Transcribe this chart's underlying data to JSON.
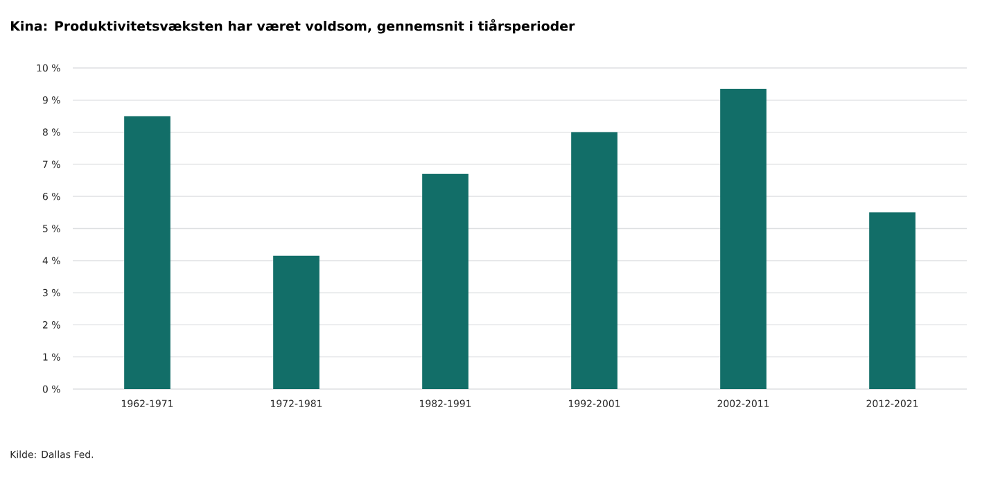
{
  "chart_data": {
    "type": "bar",
    "title": "Kina: Produktivitetsvæksten har været voldsom, gennemsnit i tiårsperioder",
    "categories": [
      "1962-1971",
      "1972-1981",
      "1982-1991",
      "1992-2001",
      "2002-2011",
      "2012-2021"
    ],
    "values": [
      8.5,
      4.15,
      6.7,
      8.0,
      9.35,
      5.5
    ],
    "color": "#126e68",
    "ylim": [
      0,
      10
    ],
    "yticks": [
      {
        "value": 0,
        "label": "0 %"
      },
      {
        "value": 1,
        "label": "1 %"
      },
      {
        "value": 2,
        "label": "2 %"
      },
      {
        "value": 3,
        "label": "3 %"
      },
      {
        "value": 4,
        "label": "4 %"
      },
      {
        "value": 5,
        "label": "5 %"
      },
      {
        "value": 6,
        "label": "6 %"
      },
      {
        "value": 7,
        "label": "7 %"
      },
      {
        "value": 8,
        "label": "8 %"
      },
      {
        "value": 9,
        "label": "9 %"
      },
      {
        "value": 10,
        "label": "10 %"
      }
    ],
    "grid": "y",
    "annotations": [
      "Kilde: Dallas Fed."
    ]
  }
}
